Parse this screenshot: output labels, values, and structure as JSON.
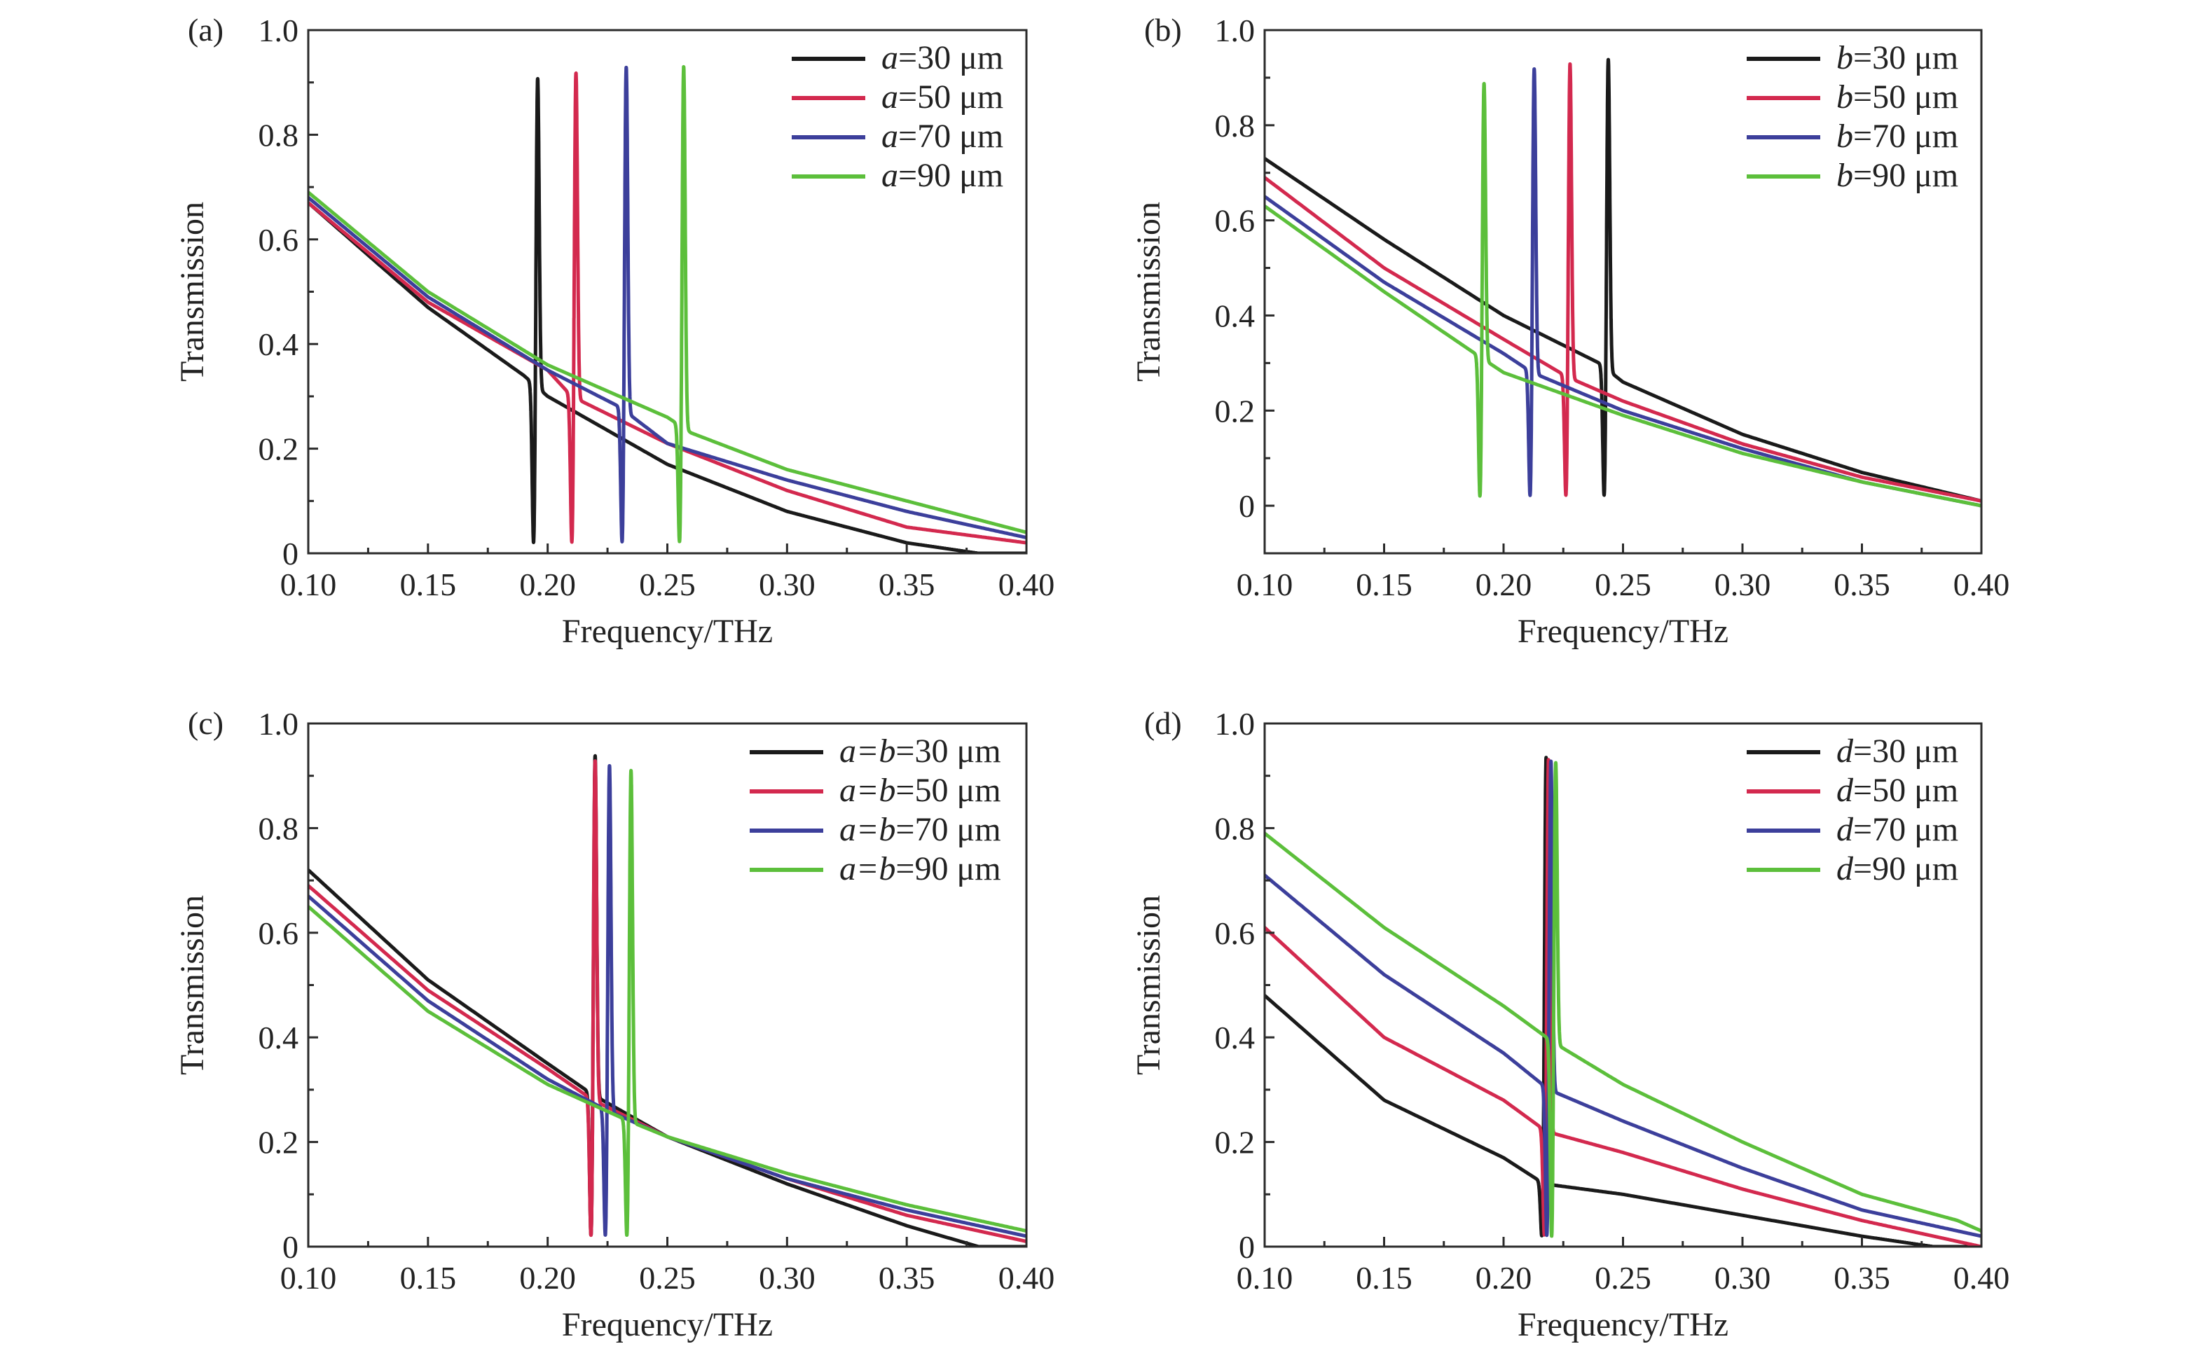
{
  "colors": {
    "black": "#1a1a1a",
    "red": "#d3294e",
    "blue": "#3c3f9b",
    "green": "#5cbf3b"
  },
  "chart_data": [
    {
      "panel": "(a)",
      "type": "line",
      "xlabel": "Frequency/THz",
      "ylabel": "Transmission",
      "xlim": [
        0.1,
        0.4
      ],
      "ylim": [
        0,
        1.0
      ],
      "x_ticks": [
        "0.10",
        "0.15",
        "0.20",
        "0.25",
        "0.30",
        "0.35",
        "0.40"
      ],
      "y_ticks": [
        "0",
        "0.2",
        "0.4",
        "0.6",
        "0.8",
        "1.0"
      ],
      "legend_position": "top-right",
      "series": [
        {
          "name_var": "a",
          "name_rest": "=30 μm",
          "color": "black",
          "resonance": 0.195,
          "peak": 0.92,
          "baseline": [
            [
              0.1,
              0.67
            ],
            [
              0.15,
              0.47
            ],
            [
              0.19,
              0.34
            ],
            [
              0.2,
              0.3
            ],
            [
              0.25,
              0.17
            ],
            [
              0.3,
              0.08
            ],
            [
              0.35,
              0.02
            ],
            [
              0.38,
              0.0
            ],
            [
              0.4,
              0.0
            ]
          ]
        },
        {
          "name_var": "a",
          "name_rest": "=50 μm",
          "color": "red",
          "resonance": 0.211,
          "peak": 0.93,
          "baseline": [
            [
              0.1,
              0.67
            ],
            [
              0.15,
              0.48
            ],
            [
              0.2,
              0.35
            ],
            [
              0.21,
              0.3
            ],
            [
              0.25,
              0.21
            ],
            [
              0.3,
              0.12
            ],
            [
              0.35,
              0.05
            ],
            [
              0.4,
              0.02
            ]
          ]
        },
        {
          "name_var": "a",
          "name_rest": "=70 μm",
          "color": "blue",
          "resonance": 0.232,
          "peak": 0.94,
          "baseline": [
            [
              0.1,
              0.68
            ],
            [
              0.15,
              0.49
            ],
            [
              0.2,
              0.35
            ],
            [
              0.23,
              0.28
            ],
            [
              0.25,
              0.21
            ],
            [
              0.3,
              0.14
            ],
            [
              0.35,
              0.08
            ],
            [
              0.4,
              0.03
            ]
          ]
        },
        {
          "name_var": "a",
          "name_rest": "=90 μm",
          "color": "green",
          "resonance": 0.256,
          "peak": 0.94,
          "baseline": [
            [
              0.1,
              0.69
            ],
            [
              0.15,
              0.5
            ],
            [
              0.2,
              0.36
            ],
            [
              0.25,
              0.26
            ],
            [
              0.26,
              0.23
            ],
            [
              0.3,
              0.16
            ],
            [
              0.35,
              0.1
            ],
            [
              0.4,
              0.04
            ]
          ]
        }
      ]
    },
    {
      "panel": "(b)",
      "type": "line",
      "xlabel": "Frequency/THz",
      "ylabel": "Transmission",
      "xlim": [
        0.1,
        0.4
      ],
      "ylim": [
        -0.1,
        1.0
      ],
      "x_ticks": [
        "0.10",
        "0.15",
        "0.20",
        "0.25",
        "0.30",
        "0.35",
        "0.40"
      ],
      "y_ticks": [
        "0",
        "0.2",
        "0.4",
        "0.6",
        "0.8",
        "1.0"
      ],
      "legend_position": "top-right",
      "series": [
        {
          "name_var": "b",
          "name_rest": "=30 μm",
          "color": "black",
          "resonance": 0.243,
          "peak": 0.95,
          "baseline": [
            [
              0.1,
              0.73
            ],
            [
              0.15,
              0.56
            ],
            [
              0.2,
              0.4
            ],
            [
              0.24,
              0.3
            ],
            [
              0.25,
              0.26
            ],
            [
              0.3,
              0.15
            ],
            [
              0.35,
              0.07
            ],
            [
              0.4,
              0.01
            ]
          ]
        },
        {
          "name_var": "b",
          "name_rest": "=50 μm",
          "color": "red",
          "resonance": 0.227,
          "peak": 0.94,
          "baseline": [
            [
              0.1,
              0.69
            ],
            [
              0.15,
              0.5
            ],
            [
              0.2,
              0.35
            ],
            [
              0.227,
              0.27
            ],
            [
              0.25,
              0.22
            ],
            [
              0.3,
              0.13
            ],
            [
              0.35,
              0.06
            ],
            [
              0.4,
              0.01
            ]
          ]
        },
        {
          "name_var": "b",
          "name_rest": "=70 μm",
          "color": "blue",
          "resonance": 0.212,
          "peak": 0.93,
          "baseline": [
            [
              0.1,
              0.65
            ],
            [
              0.15,
              0.47
            ],
            [
              0.2,
              0.32
            ],
            [
              0.212,
              0.28
            ],
            [
              0.25,
              0.2
            ],
            [
              0.3,
              0.12
            ],
            [
              0.35,
              0.05
            ],
            [
              0.4,
              0.0
            ]
          ]
        },
        {
          "name_var": "b",
          "name_rest": "=90 μm",
          "color": "green",
          "resonance": 0.191,
          "peak": 0.9,
          "baseline": [
            [
              0.1,
              0.63
            ],
            [
              0.15,
              0.45
            ],
            [
              0.191,
              0.31
            ],
            [
              0.2,
              0.28
            ],
            [
              0.25,
              0.19
            ],
            [
              0.3,
              0.11
            ],
            [
              0.35,
              0.05
            ],
            [
              0.4,
              0.0
            ]
          ]
        }
      ]
    },
    {
      "panel": "(c)",
      "type": "line",
      "xlabel": "Frequency/THz",
      "ylabel": "Transmission",
      "xlim": [
        0.1,
        0.4
      ],
      "ylim": [
        0,
        1.0
      ],
      "x_ticks": [
        "0.10",
        "0.15",
        "0.20",
        "0.25",
        "0.30",
        "0.35",
        "0.40"
      ],
      "y_ticks": [
        "0",
        "0.2",
        "0.4",
        "0.6",
        "0.8",
        "1.0"
      ],
      "legend_position": "top-right",
      "series": [
        {
          "name_var": "a=b",
          "name_rest": "=30 μm",
          "color": "black",
          "resonance": 0.219,
          "peak": 0.95,
          "baseline": [
            [
              0.1,
              0.72
            ],
            [
              0.15,
              0.51
            ],
            [
              0.2,
              0.35
            ],
            [
              0.219,
              0.29
            ],
            [
              0.25,
              0.21
            ],
            [
              0.3,
              0.12
            ],
            [
              0.35,
              0.04
            ],
            [
              0.38,
              0.0
            ],
            [
              0.4,
              0.0
            ]
          ]
        },
        {
          "name_var": "a=b",
          "name_rest": "=50 μm",
          "color": "red",
          "resonance": 0.219,
          "peak": 0.94,
          "baseline": [
            [
              0.1,
              0.69
            ],
            [
              0.15,
              0.49
            ],
            [
              0.2,
              0.34
            ],
            [
              0.219,
              0.28
            ],
            [
              0.25,
              0.21
            ],
            [
              0.3,
              0.13
            ],
            [
              0.35,
              0.06
            ],
            [
              0.4,
              0.01
            ]
          ]
        },
        {
          "name_var": "a=b",
          "name_rest": "=70 μm",
          "color": "blue",
          "resonance": 0.225,
          "peak": 0.93,
          "baseline": [
            [
              0.1,
              0.67
            ],
            [
              0.15,
              0.47
            ],
            [
              0.2,
              0.32
            ],
            [
              0.225,
              0.26
            ],
            [
              0.25,
              0.21
            ],
            [
              0.3,
              0.13
            ],
            [
              0.35,
              0.07
            ],
            [
              0.4,
              0.02
            ]
          ]
        },
        {
          "name_var": "a=b",
          "name_rest": "=90 μm",
          "color": "green",
          "resonance": 0.234,
          "peak": 0.92,
          "baseline": [
            [
              0.1,
              0.65
            ],
            [
              0.15,
              0.45
            ],
            [
              0.2,
              0.31
            ],
            [
              0.234,
              0.24
            ],
            [
              0.25,
              0.21
            ],
            [
              0.3,
              0.14
            ],
            [
              0.35,
              0.08
            ],
            [
              0.4,
              0.03
            ]
          ]
        }
      ]
    },
    {
      "panel": "(d)",
      "type": "line",
      "xlabel": "Frequency/THz",
      "ylabel": "Transmission",
      "xlim": [
        0.1,
        0.4
      ],
      "ylim": [
        0,
        1.0
      ],
      "x_ticks": [
        "0.10",
        "0.15",
        "0.20",
        "0.25",
        "0.30",
        "0.35",
        "0.40"
      ],
      "y_ticks": [
        "0",
        "0.2",
        "0.4",
        "0.6",
        "0.8",
        "1.0"
      ],
      "legend_position": "top-right",
      "series": [
        {
          "name_var": "d",
          "name_rest": "=30 μm",
          "color": "black",
          "resonance": 0.217,
          "peak": 0.94,
          "baseline": [
            [
              0.1,
              0.48
            ],
            [
              0.15,
              0.28
            ],
            [
              0.2,
              0.17
            ],
            [
              0.217,
              0.12
            ],
            [
              0.25,
              0.1
            ],
            [
              0.3,
              0.06
            ],
            [
              0.35,
              0.02
            ],
            [
              0.38,
              0.0
            ],
            [
              0.4,
              0.0
            ]
          ]
        },
        {
          "name_var": "d",
          "name_rest": "=50 μm",
          "color": "red",
          "resonance": 0.218,
          "peak": 0.94,
          "baseline": [
            [
              0.1,
              0.61
            ],
            [
              0.15,
              0.4
            ],
            [
              0.2,
              0.28
            ],
            [
              0.218,
              0.22
            ],
            [
              0.25,
              0.18
            ],
            [
              0.3,
              0.11
            ],
            [
              0.35,
              0.05
            ],
            [
              0.4,
              0.0
            ]
          ]
        },
        {
          "name_var": "d",
          "name_rest": "=70 μm",
          "color": "blue",
          "resonance": 0.219,
          "peak": 0.94,
          "baseline": [
            [
              0.1,
              0.71
            ],
            [
              0.15,
              0.52
            ],
            [
              0.2,
              0.37
            ],
            [
              0.219,
              0.3
            ],
            [
              0.25,
              0.24
            ],
            [
              0.3,
              0.15
            ],
            [
              0.35,
              0.07
            ],
            [
              0.4,
              0.02
            ]
          ]
        },
        {
          "name_var": "d",
          "name_rest": "=90 μm",
          "color": "green",
          "resonance": 0.221,
          "peak": 0.94,
          "baseline": [
            [
              0.1,
              0.79
            ],
            [
              0.15,
              0.61
            ],
            [
              0.2,
              0.46
            ],
            [
              0.221,
              0.39
            ],
            [
              0.25,
              0.31
            ],
            [
              0.3,
              0.2
            ],
            [
              0.35,
              0.1
            ],
            [
              0.39,
              0.05
            ],
            [
              0.4,
              0.03
            ]
          ]
        }
      ]
    }
  ]
}
